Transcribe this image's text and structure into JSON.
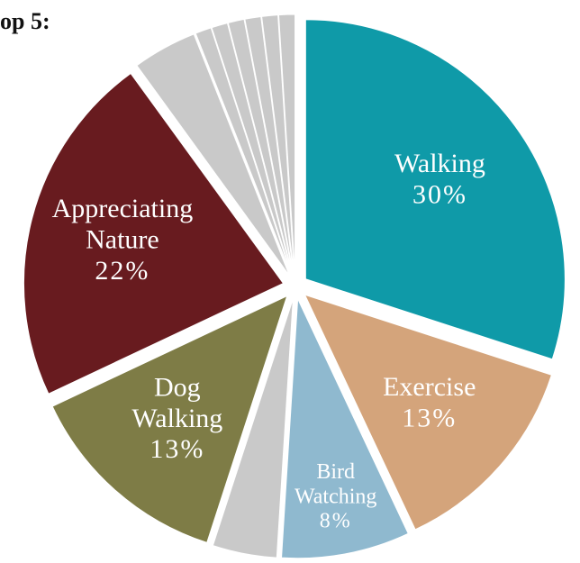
{
  "chart_data": {
    "type": "pie",
    "title": "op 5:",
    "categories": [
      "Walking",
      "Exercise",
      "Bird Watching",
      null,
      "Dog Walking",
      "Appreciating Nature",
      null,
      null,
      null,
      null,
      null,
      null,
      null
    ],
    "values": [
      30,
      13,
      8,
      4,
      13,
      22,
      4,
      1,
      1,
      1,
      1,
      1,
      1
    ],
    "value_labels": [
      "30%",
      "13%",
      "8%",
      null,
      "13%",
      "22%",
      null,
      null,
      null,
      null,
      null,
      null,
      null
    ],
    "colors": [
      "#0f9aa8",
      "#d4a47b",
      "#8fb9cf",
      "#c9c9c9",
      "#7e7c46",
      "#681b1f",
      "#c9c9c9",
      "#c9c9c9",
      "#c9c9c9",
      "#c9c9c9",
      "#c9c9c9",
      "#c9c9c9",
      "#c9c9c9"
    ]
  }
}
